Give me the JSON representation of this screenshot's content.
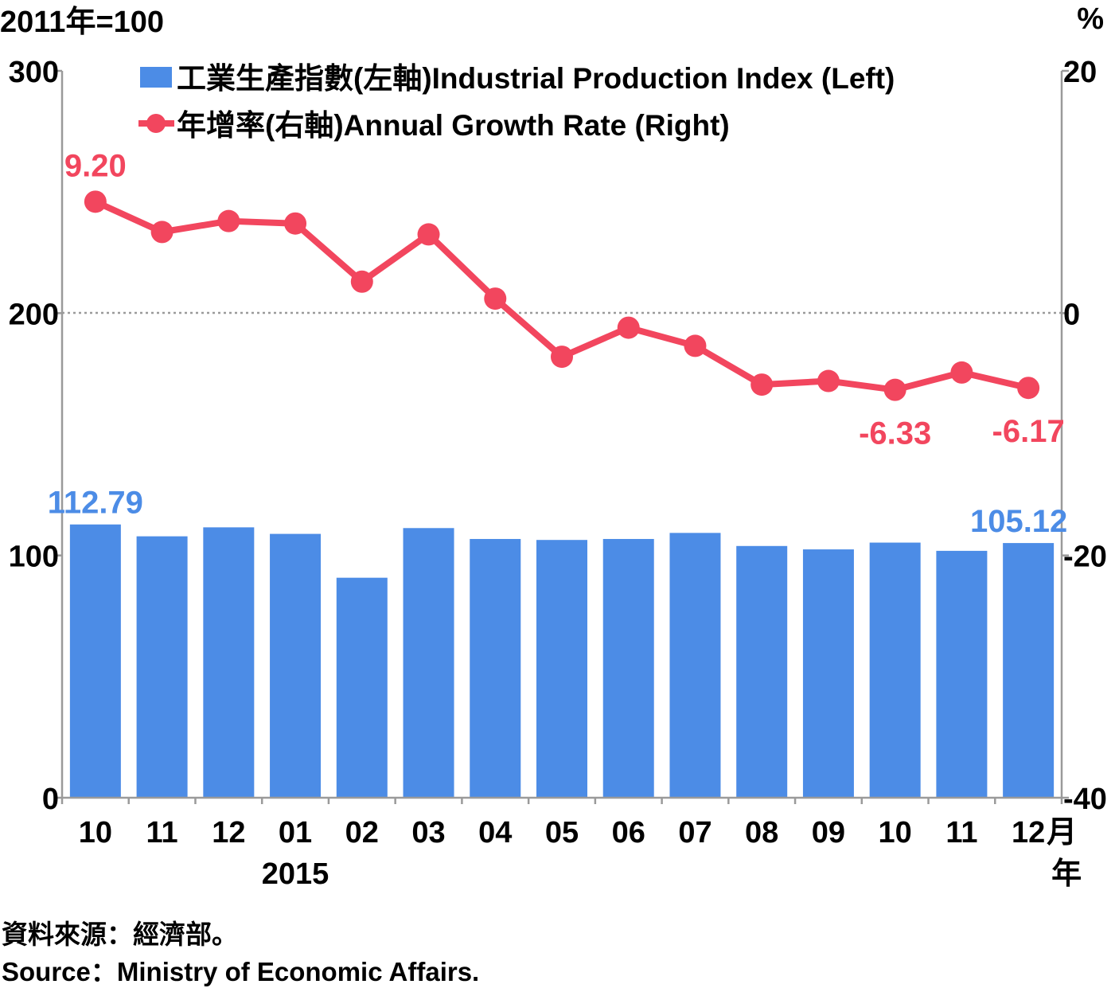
{
  "left_unit": "2011年=100",
  "right_unit": "%",
  "source_zh": "資料來源：經濟部。",
  "source_en": "Source：Ministry of Economic Affairs.",
  "colors": {
    "bar": "#4c8ce6",
    "line": "#f2465e",
    "axis": "#9a9a9a",
    "text": "#000000"
  },
  "chart_data": {
    "type": "bar",
    "categories": [
      "10",
      "11",
      "12",
      "01",
      "02",
      "03",
      "04",
      "05",
      "06",
      "07",
      "08",
      "09",
      "10",
      "11",
      "12"
    ],
    "x_suffix_month": "月",
    "x_suffix_year": "年",
    "year_label": "2015",
    "year_label_under": "01",
    "series": [
      {
        "name": "工業生產指數(左軸)Industrial Production Index (Left)",
        "kind": "bar",
        "axis": "left",
        "values": [
          112.79,
          107.9,
          111.6,
          108.9,
          90.8,
          111.3,
          106.8,
          106.4,
          106.8,
          109.3,
          103.9,
          102.5,
          105.3,
          101.9,
          105.12
        ]
      },
      {
        "name": "年增率(右軸)Annual Growth Rate (Right)",
        "kind": "line",
        "axis": "right",
        "values": [
          9.2,
          6.7,
          7.6,
          7.4,
          2.6,
          6.5,
          1.2,
          -3.6,
          -1.2,
          -2.7,
          -5.9,
          -5.6,
          -6.33,
          -4.9,
          -6.17
        ]
      }
    ],
    "data_labels": [
      {
        "series": 0,
        "index": 0,
        "text": "112.79"
      },
      {
        "series": 0,
        "index": 14,
        "text": "105.12"
      },
      {
        "series": 1,
        "index": 0,
        "text": "9.20"
      },
      {
        "series": 1,
        "index": 12,
        "text": "-6.33"
      },
      {
        "series": 1,
        "index": 14,
        "text": "-6.17"
      }
    ],
    "ylim_left": [
      0,
      300
    ],
    "yticks_left": [
      0,
      100,
      200,
      300
    ],
    "ylim_right": [
      -40,
      20
    ],
    "yticks_right": [
      -40,
      -20,
      0,
      20
    ],
    "legend_position": "top-center"
  }
}
